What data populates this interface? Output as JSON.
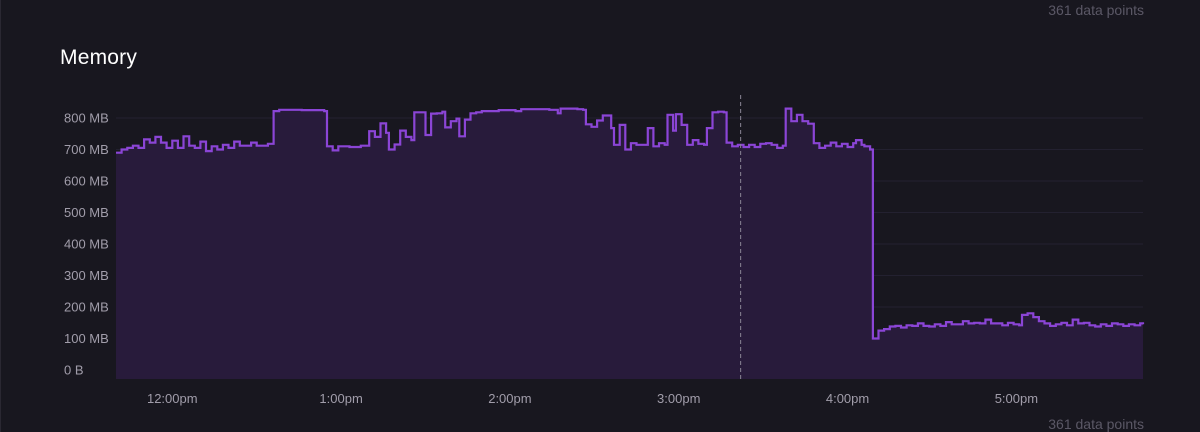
{
  "header": {
    "title": "Memory",
    "points_top": "361 data points",
    "points_bottom": "361 data points"
  },
  "colors": {
    "background": "#18171f",
    "line": "#8b45d6",
    "fill": "#281b3b",
    "grid": "#232130",
    "marker": "#8a8595"
  },
  "chart_data": {
    "type": "area",
    "title": "Memory",
    "xlabel": "",
    "ylabel": "",
    "y_unit": "MB",
    "ylim": [
      0,
      850
    ],
    "y_ticks": [
      0,
      100,
      200,
      300,
      400,
      500,
      600,
      700,
      800
    ],
    "y_tick_labels": [
      "0 B",
      "100 MB",
      "200 MB",
      "300 MB",
      "400 MB",
      "500 MB",
      "600 MB",
      "700 MB",
      "800 MB"
    ],
    "x_range_minutes": [
      700,
      1065
    ],
    "x_ticks_minutes": [
      720,
      780,
      840,
      900,
      960,
      1020
    ],
    "x_tick_labels": [
      "12:00pm",
      "1:00pm",
      "2:00pm",
      "3:00pm",
      "4:00pm",
      "5:00pm"
    ],
    "marker_minutes": 922,
    "grid": true,
    "step": true,
    "series": [
      {
        "name": "",
        "points": [
          [
            700,
            690
          ],
          [
            702,
            700
          ],
          [
            704,
            705
          ],
          [
            706,
            712
          ],
          [
            708,
            705
          ],
          [
            710,
            732
          ],
          [
            712,
            722
          ],
          [
            714,
            740
          ],
          [
            716,
            722
          ],
          [
            718,
            705
          ],
          [
            720,
            728
          ],
          [
            722,
            705
          ],
          [
            724,
            742
          ],
          [
            726,
            712
          ],
          [
            728,
            705
          ],
          [
            730,
            725
          ],
          [
            732,
            695
          ],
          [
            734,
            710
          ],
          [
            736,
            700
          ],
          [
            738,
            715
          ],
          [
            740,
            705
          ],
          [
            742,
            725
          ],
          [
            744,
            712
          ],
          [
            746,
            712
          ],
          [
            748,
            722
          ],
          [
            750,
            712
          ],
          [
            752,
            712
          ],
          [
            754,
            718
          ],
          [
            756,
            822
          ],
          [
            758,
            826
          ],
          [
            764,
            826
          ],
          [
            766,
            825
          ],
          [
            772,
            825
          ],
          [
            774,
            822
          ],
          [
            775,
            710
          ],
          [
            777,
            697
          ],
          [
            779,
            710
          ],
          [
            783,
            708
          ],
          [
            787,
            712
          ],
          [
            790,
            758
          ],
          [
            792,
            740
          ],
          [
            794,
            783
          ],
          [
            796,
            753
          ],
          [
            797,
            700
          ],
          [
            799,
            716
          ],
          [
            801,
            760
          ],
          [
            803,
            740
          ],
          [
            805,
            730
          ],
          [
            806,
            818
          ],
          [
            808,
            818
          ],
          [
            810,
            746
          ],
          [
            812,
            814
          ],
          [
            814,
            815
          ],
          [
            816,
            820
          ],
          [
            817,
            770
          ],
          [
            819,
            790
          ],
          [
            821,
            798
          ],
          [
            822,
            742
          ],
          [
            824,
            795
          ],
          [
            826,
            815
          ],
          [
            828,
            818
          ],
          [
            830,
            822
          ],
          [
            836,
            825
          ],
          [
            842,
            822
          ],
          [
            844,
            828
          ],
          [
            848,
            828
          ],
          [
            854,
            826
          ],
          [
            856,
            826
          ],
          [
            857,
            815
          ],
          [
            858,
            830
          ],
          [
            862,
            830
          ],
          [
            864,
            828
          ],
          [
            866,
            826
          ],
          [
            867,
            780
          ],
          [
            869,
            772
          ],
          [
            871,
            792
          ],
          [
            873,
            808
          ],
          [
            875,
            808
          ],
          [
            876,
            768
          ],
          [
            877,
            715
          ],
          [
            879,
            778
          ],
          [
            881,
            700
          ],
          [
            883,
            720
          ],
          [
            885,
            715
          ],
          [
            887,
            715
          ],
          [
            889,
            768
          ],
          [
            891,
            710
          ],
          [
            893,
            720
          ],
          [
            895,
            715
          ],
          [
            896,
            810
          ],
          [
            898,
            760
          ],
          [
            899,
            812
          ],
          [
            901,
            778
          ],
          [
            903,
            715
          ],
          [
            905,
            730
          ],
          [
            907,
            718
          ],
          [
            909,
            715
          ],
          [
            910,
            768
          ],
          [
            912,
            818
          ],
          [
            914,
            820
          ],
          [
            916,
            818
          ],
          [
            917,
            722
          ],
          [
            919,
            710
          ],
          [
            921,
            715
          ],
          [
            923,
            708
          ],
          [
            925,
            715
          ],
          [
            927,
            708
          ],
          [
            929,
            718
          ],
          [
            931,
            720
          ],
          [
            933,
            715
          ],
          [
            935,
            705
          ],
          [
            937,
            712
          ],
          [
            938,
            830
          ],
          [
            940,
            790
          ],
          [
            942,
            810
          ],
          [
            944,
            790
          ],
          [
            946,
            782
          ],
          [
            948,
            720
          ],
          [
            950,
            705
          ],
          [
            952,
            712
          ],
          [
            954,
            722
          ],
          [
            956,
            710
          ],
          [
            958,
            718
          ],
          [
            960,
            708
          ],
          [
            962,
            720
          ],
          [
            963,
            730
          ],
          [
            965,
            715
          ],
          [
            966,
            710
          ],
          [
            968,
            700
          ],
          [
            969,
            100
          ],
          [
            970,
            100
          ],
          [
            971,
            125
          ],
          [
            973,
            130
          ],
          [
            975,
            138
          ],
          [
            977,
            140
          ],
          [
            979,
            135
          ],
          [
            981,
            142
          ],
          [
            983,
            140
          ],
          [
            985,
            148
          ],
          [
            987,
            140
          ],
          [
            989,
            138
          ],
          [
            991,
            145
          ],
          [
            993,
            140
          ],
          [
            995,
            152
          ],
          [
            997,
            145
          ],
          [
            999,
            145
          ],
          [
            1001,
            155
          ],
          [
            1003,
            148
          ],
          [
            1005,
            150
          ],
          [
            1007,
            148
          ],
          [
            1009,
            160
          ],
          [
            1011,
            148
          ],
          [
            1013,
            148
          ],
          [
            1015,
            142
          ],
          [
            1017,
            150
          ],
          [
            1019,
            145
          ],
          [
            1021,
            142
          ],
          [
            1022,
            175
          ],
          [
            1024,
            180
          ],
          [
            1026,
            168
          ],
          [
            1028,
            155
          ],
          [
            1030,
            148
          ],
          [
            1032,
            140
          ],
          [
            1034,
            145
          ],
          [
            1036,
            150
          ],
          [
            1038,
            142
          ],
          [
            1040,
            160
          ],
          [
            1042,
            148
          ],
          [
            1044,
            150
          ],
          [
            1046,
            142
          ],
          [
            1048,
            138
          ],
          [
            1050,
            145
          ],
          [
            1052,
            140
          ],
          [
            1054,
            148
          ],
          [
            1056,
            145
          ],
          [
            1058,
            140
          ],
          [
            1060,
            145
          ],
          [
            1062,
            142
          ],
          [
            1064,
            148
          ],
          [
            1065,
            145
          ]
        ]
      }
    ]
  }
}
